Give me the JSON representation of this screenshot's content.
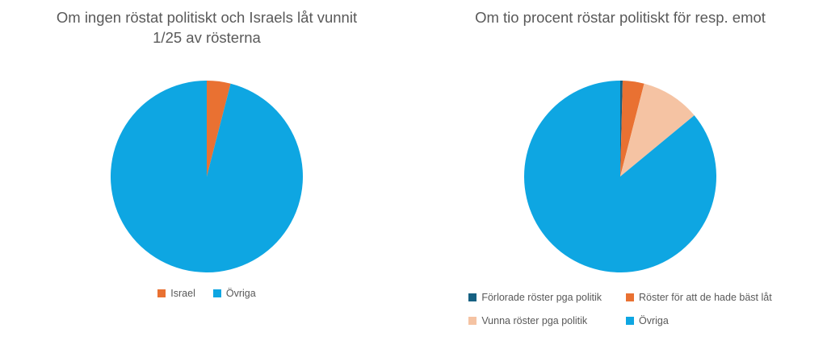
{
  "page": {
    "background": "#FFFFFF",
    "text_color": "#595959"
  },
  "chart_data": [
    {
      "type": "pie",
      "title": "Om ingen röstat politiskt och Israels låt vunnit 1/25 av rösterna",
      "labels": [
        "Israel",
        "Övriga"
      ],
      "values": [
        4,
        96
      ],
      "unit": "percent",
      "colors": [
        "#E97132",
        "#0EA6E2"
      ],
      "start_angle_deg": 0,
      "direction": "clockwise",
      "legend_position": "bottom"
    },
    {
      "type": "pie",
      "title": "Om tio procent röstar politiskt för resp. emot",
      "labels": [
        "Förlorade röster pga politik",
        "Röster för att de hade bäst låt",
        "Vunna röster pga politik",
        "Övriga"
      ],
      "values": [
        0.4,
        3.6,
        10,
        86
      ],
      "unit": "percent",
      "colors": [
        "#156082",
        "#E97132",
        "#F5C3A3",
        "#0EA6E2"
      ],
      "start_angle_deg": 0,
      "direction": "clockwise",
      "legend_position": "bottom"
    }
  ]
}
